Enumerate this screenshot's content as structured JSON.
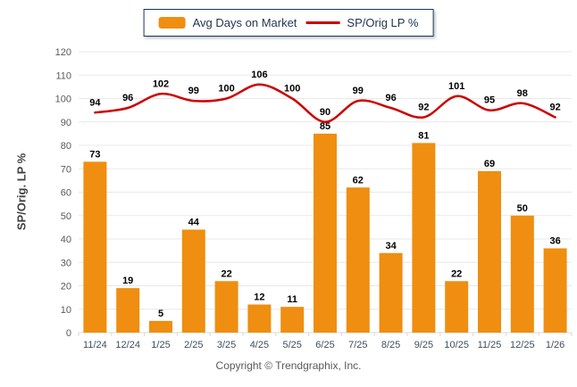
{
  "legend": {
    "items": [
      {
        "label": "Avg Days on Market",
        "swatch": "bar"
      },
      {
        "label": "SP/Orig LP %",
        "swatch": "line"
      }
    ]
  },
  "footer": {
    "copyright": "Copyright © Trendgraphix, Inc."
  },
  "colors": {
    "bar": "#EF8E10",
    "line": "#CC0000",
    "grid": "#E8E8E8",
    "baseline": "#D9D9D9",
    "tick": "#D9D9D9",
    "y_tick_text": "#595959",
    "x_tick_text": "#3F4D5E",
    "value_label_text": "#000000",
    "legend_border": "#17375E"
  },
  "chart_data": {
    "type": "bar+line",
    "title": "",
    "ylabel": "SP/Orig. LP %",
    "xlabel": "",
    "ylim": [
      0,
      120
    ],
    "ytick_step": 10,
    "grid": "horizontal",
    "legend_position": "top-center",
    "categories": [
      "11/24",
      "12/24",
      "1/25",
      "2/25",
      "3/25",
      "4/25",
      "5/25",
      "6/25",
      "7/25",
      "8/25",
      "9/25",
      "10/25",
      "11/25",
      "12/25",
      "1/26"
    ],
    "series": [
      {
        "name": "Avg Days on Market",
        "type": "bar",
        "values": [
          73,
          19,
          5,
          44,
          22,
          12,
          11,
          85,
          62,
          34,
          81,
          22,
          69,
          50,
          36
        ]
      },
      {
        "name": "SP/Orig LP %",
        "type": "line",
        "values": [
          94,
          96,
          102,
          99,
          100,
          106,
          100,
          90,
          99,
          96,
          92,
          101,
          95,
          98,
          92
        ]
      }
    ]
  }
}
